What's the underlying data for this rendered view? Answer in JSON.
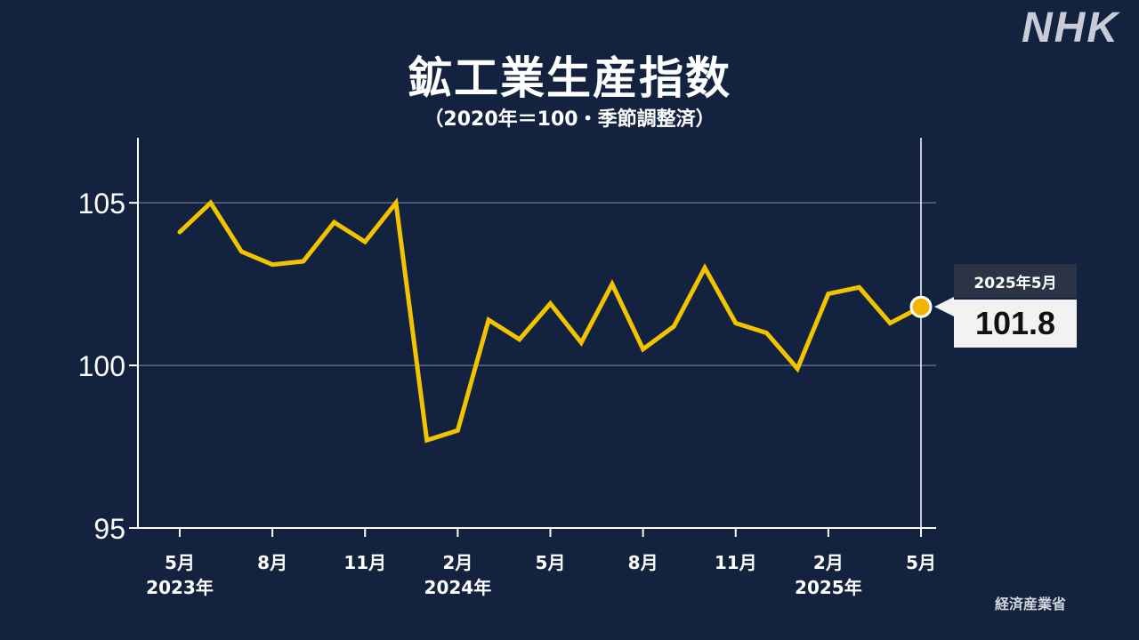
{
  "brand": "NHK",
  "source": "経済産業省",
  "chart_data": {
    "type": "line",
    "title": "鉱工業生産指数",
    "subtitle": "（2020年＝100・季節調整済）",
    "y_ticks": [
      "105",
      "100",
      "95"
    ],
    "ylim": [
      95,
      107
    ],
    "x_tick_labels": [
      {
        "index": 0,
        "month": "5月",
        "year": "2023年"
      },
      {
        "index": 3,
        "month": "8月",
        "year": ""
      },
      {
        "index": 6,
        "month": "11月",
        "year": ""
      },
      {
        "index": 9,
        "month": "2月",
        "year": "2024年"
      },
      {
        "index": 12,
        "month": "5月",
        "year": ""
      },
      {
        "index": 15,
        "month": "8月",
        "year": ""
      },
      {
        "index": 18,
        "month": "11月",
        "year": ""
      },
      {
        "index": 21,
        "month": "2月",
        "year": "2025年"
      },
      {
        "index": 24,
        "month": "5月",
        "year": ""
      }
    ],
    "values": [
      104.1,
      105.0,
      103.5,
      103.1,
      103.2,
      104.4,
      103.8,
      105.0,
      97.7,
      98.0,
      101.4,
      100.8,
      101.9,
      100.7,
      102.5,
      100.5,
      101.2,
      103.0,
      101.3,
      101.0,
      99.9,
      102.2,
      102.4,
      101.3,
      101.8
    ],
    "highlight": {
      "label": "2025年5月",
      "value": "101.8"
    },
    "grid": true,
    "line_color": "#f2c400"
  }
}
